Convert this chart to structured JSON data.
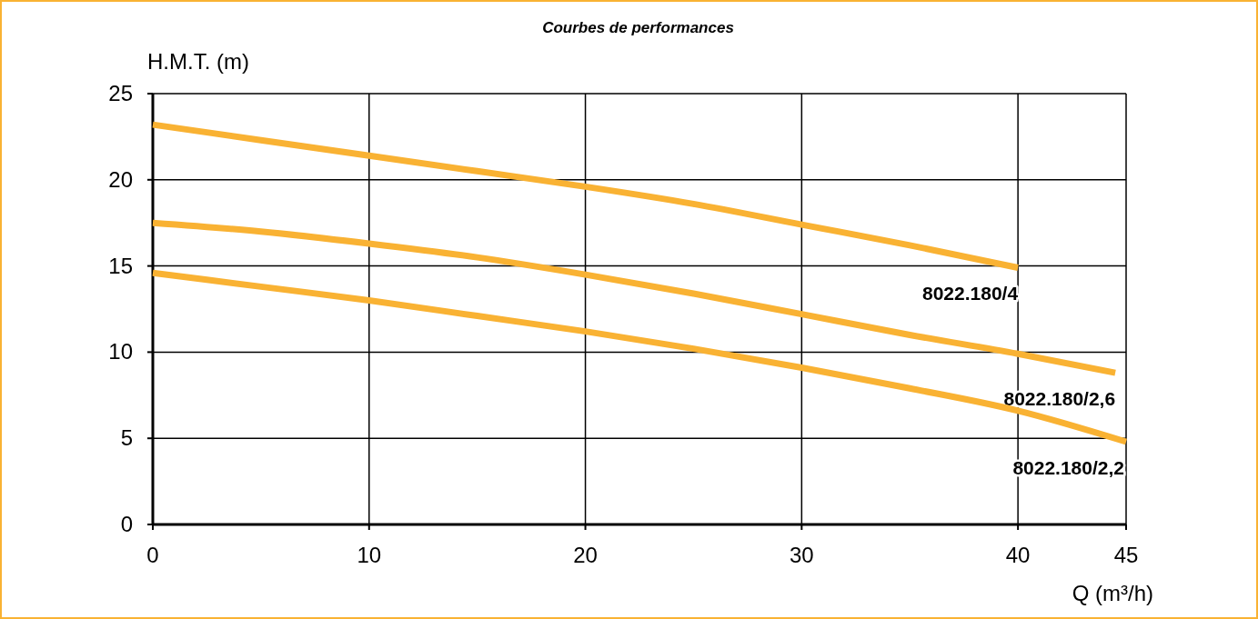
{
  "chart_data": {
    "type": "line",
    "title": "Courbes de performances",
    "xlabel": "Q (m³/h)",
    "ylabel": "H.M.T. (m)",
    "xlim": [
      0,
      45
    ],
    "ylim": [
      0,
      25
    ],
    "xticks": [
      0,
      10,
      20,
      30,
      40,
      45
    ],
    "yticks": [
      0,
      5,
      10,
      15,
      20,
      25
    ],
    "grid": true,
    "marker": "none",
    "line_style": "solid",
    "series": [
      {
        "name": "8022.180/4",
        "color": "#f9b233",
        "x": [
          0,
          5,
          10,
          15,
          20,
          25,
          30,
          35,
          40
        ],
        "values": [
          23.2,
          22.3,
          21.4,
          20.5,
          19.6,
          18.6,
          17.4,
          16.2,
          14.9
        ]
      },
      {
        "name": "8022.180/2,6",
        "color": "#f9b233",
        "x": [
          0,
          5,
          10,
          15,
          20,
          25,
          30,
          35,
          40,
          44.5
        ],
        "values": [
          17.5,
          17.0,
          16.3,
          15.5,
          14.5,
          13.4,
          12.2,
          11.0,
          9.9,
          8.8
        ]
      },
      {
        "name": "8022.180/2,2",
        "color": "#f9b233",
        "x": [
          0,
          5,
          10,
          15,
          20,
          25,
          30,
          35,
          40,
          45
        ],
        "values": [
          14.6,
          13.8,
          13.0,
          12.1,
          11.2,
          10.2,
          9.1,
          7.9,
          6.6,
          4.8
        ]
      }
    ]
  }
}
